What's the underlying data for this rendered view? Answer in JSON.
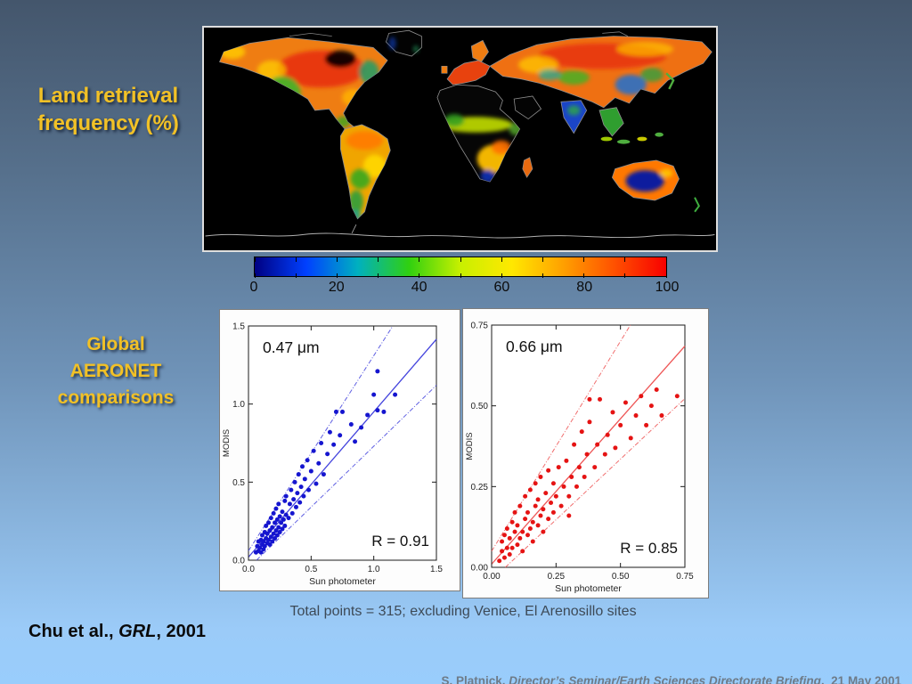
{
  "header": {
    "map_label": "Land retrieval frequency (%)"
  },
  "aeronet": {
    "label": "Global\nAERONET\ncomparisons"
  },
  "notes": {
    "total_points": "Total points = 315; excluding Venice, El Arenosillo sites"
  },
  "citation": {
    "prefix": "Chu et al., ",
    "journal_italic": "GRL",
    "suffix": ", 2001"
  },
  "footer": {
    "prefix": "S. Platnick, ",
    "italic": "Director’s Seminar/Earth Sciences Directorate Briefing",
    "suffix": ",  21 May 2001"
  },
  "colors": {
    "background_top": "#44566c",
    "background_bottom": "#99cdfc",
    "title_yellow": "#f2c126",
    "footer_gray": "#6e7b88",
    "scatter_blue": "#1515cf",
    "scatter_red": "#e51313"
  },
  "chart_data": [
    {
      "id": "land-retrieval-map",
      "type": "heatmap",
      "title": "Land retrieval frequency (%)",
      "description": "Global equirectangular map, black ocean/deserts, land colored by retrieval frequency 0-100%",
      "colorbar": {
        "min": 0,
        "max": 100,
        "minor_tick_step": 10,
        "label_values": [
          0,
          20,
          40,
          60,
          80,
          100
        ],
        "colors": [
          "#000082",
          "#0040ff",
          "#00b0c0",
          "#30d010",
          "#c8f000",
          "#ffe800",
          "#ffa000",
          "#ff5000",
          "#f80000"
        ]
      }
    },
    {
      "id": "scatter-047",
      "type": "scatter",
      "title": "0.47 μm",
      "xlabel": "Sun photometer",
      "ylabel": "MODIS",
      "xlim": [
        0,
        1.5
      ],
      "ylim": [
        0,
        1.5
      ],
      "xticks": [
        0,
        0.5,
        1.0,
        1.5
      ],
      "yticks": [
        0,
        0.5,
        1.0,
        1.5
      ],
      "xtick_labels": [
        "0.0",
        "0.5",
        "1.0",
        "1.5"
      ],
      "ytick_labels": [
        "0.0",
        "0.5",
        "1.0",
        "1.5"
      ],
      "annotation": "R = 0.91",
      "point_color": "#1515cf",
      "line_color": "#4444dd",
      "fit_line": {
        "slope": 0.93,
        "intercept": 0.02
      },
      "envelope_lines": [
        {
          "slope": 1.25,
          "intercept": 0.06
        },
        {
          "slope": 0.78,
          "intercept": -0.05
        }
      ],
      "points": [
        [
          0.06,
          0.05
        ],
        [
          0.07,
          0.09
        ],
        [
          0.08,
          0.06
        ],
        [
          0.08,
          0.12
        ],
        [
          0.09,
          0.08
        ],
        [
          0.1,
          0.05
        ],
        [
          0.1,
          0.13
        ],
        [
          0.11,
          0.1
        ],
        [
          0.11,
          0.16
        ],
        [
          0.12,
          0.07
        ],
        [
          0.12,
          0.12
        ],
        [
          0.13,
          0.18
        ],
        [
          0.13,
          0.09
        ],
        [
          0.14,
          0.14
        ],
        [
          0.14,
          0.22
        ],
        [
          0.15,
          0.11
        ],
        [
          0.15,
          0.17
        ],
        [
          0.16,
          0.13
        ],
        [
          0.16,
          0.24
        ],
        [
          0.17,
          0.1
        ],
        [
          0.17,
          0.19
        ],
        [
          0.18,
          0.15
        ],
        [
          0.18,
          0.27
        ],
        [
          0.19,
          0.21
        ],
        [
          0.19,
          0.12
        ],
        [
          0.2,
          0.17
        ],
        [
          0.2,
          0.3
        ],
        [
          0.21,
          0.14
        ],
        [
          0.21,
          0.24
        ],
        [
          0.22,
          0.19
        ],
        [
          0.22,
          0.33
        ],
        [
          0.23,
          0.26
        ],
        [
          0.23,
          0.16
        ],
        [
          0.24,
          0.21
        ],
        [
          0.24,
          0.36
        ],
        [
          0.25,
          0.28
        ],
        [
          0.25,
          0.18
        ],
        [
          0.26,
          0.24
        ],
        [
          0.27,
          0.31
        ],
        [
          0.27,
          0.2
        ],
        [
          0.28,
          0.26
        ],
        [
          0.29,
          0.38
        ],
        [
          0.29,
          0.22
        ],
        [
          0.3,
          0.29
        ],
        [
          0.3,
          0.41
        ],
        [
          0.32,
          0.27
        ],
        [
          0.33,
          0.36
        ],
        [
          0.34,
          0.45
        ],
        [
          0.35,
          0.3
        ],
        [
          0.36,
          0.39
        ],
        [
          0.37,
          0.5
        ],
        [
          0.38,
          0.34
        ],
        [
          0.39,
          0.43
        ],
        [
          0.4,
          0.55
        ],
        [
          0.41,
          0.37
        ],
        [
          0.42,
          0.47
        ],
        [
          0.43,
          0.6
        ],
        [
          0.44,
          0.41
        ],
        [
          0.45,
          0.52
        ],
        [
          0.47,
          0.64
        ],
        [
          0.48,
          0.45
        ],
        [
          0.5,
          0.57
        ],
        [
          0.52,
          0.7
        ],
        [
          0.54,
          0.49
        ],
        [
          0.56,
          0.62
        ],
        [
          0.58,
          0.75
        ],
        [
          0.6,
          0.55
        ],
        [
          0.63,
          0.68
        ],
        [
          0.65,
          0.82
        ],
        [
          0.68,
          0.74
        ],
        [
          0.7,
          0.95
        ],
        [
          0.73,
          0.8
        ],
        [
          0.75,
          0.95
        ],
        [
          0.82,
          0.87
        ],
        [
          0.85,
          0.76
        ],
        [
          0.9,
          0.85
        ],
        [
          0.95,
          0.93
        ],
        [
          1.03,
          1.21
        ],
        [
          1.03,
          0.96
        ],
        [
          1.08,
          0.95
        ],
        [
          1.17,
          1.06
        ],
        [
          1.0,
          1.06
        ]
      ]
    },
    {
      "id": "scatter-066",
      "type": "scatter",
      "title": "0.66 μm",
      "xlabel": "Sun photometer",
      "ylabel": "MODIS",
      "xlim": [
        0,
        0.75
      ],
      "ylim": [
        0,
        0.75
      ],
      "xticks": [
        0,
        0.25,
        0.5,
        0.75
      ],
      "yticks": [
        0,
        0.25,
        0.5,
        0.75
      ],
      "xtick_labels": [
        "0.00",
        "0.25",
        "0.50",
        "0.75"
      ],
      "ytick_labels": [
        "0.00",
        "0.25",
        "0.50",
        "0.75"
      ],
      "annotation": "R = 0.85",
      "point_color": "#e51313",
      "line_color": "#ee5555",
      "fit_line": {
        "slope": 0.9,
        "intercept": 0.01
      },
      "envelope_lines": [
        {
          "slope": 1.3,
          "intercept": 0.05
        },
        {
          "slope": 0.75,
          "intercept": -0.04
        }
      ],
      "points": [
        [
          0.03,
          0.02
        ],
        [
          0.04,
          0.05
        ],
        [
          0.04,
          0.08
        ],
        [
          0.05,
          0.03
        ],
        [
          0.05,
          0.1
        ],
        [
          0.06,
          0.06
        ],
        [
          0.06,
          0.12
        ],
        [
          0.07,
          0.04
        ],
        [
          0.07,
          0.09
        ],
        [
          0.08,
          0.14
        ],
        [
          0.08,
          0.06
        ],
        [
          0.09,
          0.11
        ],
        [
          0.09,
          0.17
        ],
        [
          0.1,
          0.07
        ],
        [
          0.1,
          0.13
        ],
        [
          0.11,
          0.09
        ],
        [
          0.11,
          0.19
        ],
        [
          0.12,
          0.11
        ],
        [
          0.12,
          0.05
        ],
        [
          0.13,
          0.15
        ],
        [
          0.13,
          0.22
        ],
        [
          0.14,
          0.1
        ],
        [
          0.14,
          0.17
        ],
        [
          0.15,
          0.12
        ],
        [
          0.15,
          0.24
        ],
        [
          0.16,
          0.14
        ],
        [
          0.16,
          0.08
        ],
        [
          0.17,
          0.19
        ],
        [
          0.17,
          0.26
        ],
        [
          0.18,
          0.13
        ],
        [
          0.18,
          0.21
        ],
        [
          0.19,
          0.16
        ],
        [
          0.19,
          0.28
        ],
        [
          0.2,
          0.18
        ],
        [
          0.2,
          0.11
        ],
        [
          0.21,
          0.23
        ],
        [
          0.22,
          0.15
        ],
        [
          0.22,
          0.3
        ],
        [
          0.23,
          0.2
        ],
        [
          0.24,
          0.26
        ],
        [
          0.24,
          0.17
        ],
        [
          0.25,
          0.22
        ],
        [
          0.26,
          0.31
        ],
        [
          0.27,
          0.19
        ],
        [
          0.28,
          0.25
        ],
        [
          0.29,
          0.33
        ],
        [
          0.3,
          0.22
        ],
        [
          0.3,
          0.16
        ],
        [
          0.31,
          0.28
        ],
        [
          0.32,
          0.38
        ],
        [
          0.33,
          0.25
        ],
        [
          0.34,
          0.31
        ],
        [
          0.35,
          0.42
        ],
        [
          0.36,
          0.28
        ],
        [
          0.37,
          0.35
        ],
        [
          0.38,
          0.52
        ],
        [
          0.38,
          0.45
        ],
        [
          0.4,
          0.31
        ],
        [
          0.41,
          0.38
        ],
        [
          0.42,
          0.52
        ],
        [
          0.44,
          0.35
        ],
        [
          0.45,
          0.41
        ],
        [
          0.47,
          0.48
        ],
        [
          0.48,
          0.37
        ],
        [
          0.5,
          0.44
        ],
        [
          0.52,
          0.51
        ],
        [
          0.54,
          0.4
        ],
        [
          0.56,
          0.47
        ],
        [
          0.58,
          0.53
        ],
        [
          0.6,
          0.44
        ],
        [
          0.62,
          0.5
        ],
        [
          0.64,
          0.55
        ],
        [
          0.66,
          0.47
        ],
        [
          0.72,
          0.53
        ]
      ]
    }
  ]
}
